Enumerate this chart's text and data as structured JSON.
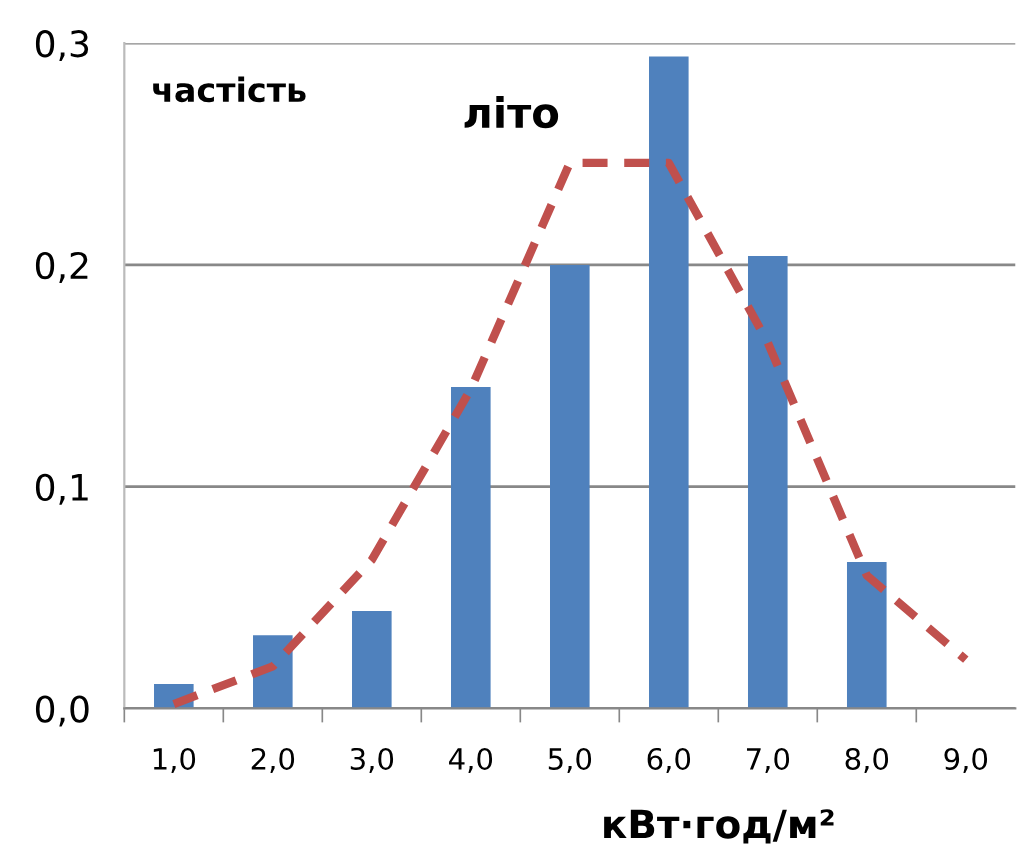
{
  "chart_data": {
    "type": "bar",
    "ylabel": "частість",
    "xlabel": "кВт·год/м²",
    "categories": [
      "1,0",
      "2,0",
      "3,0",
      "4,0",
      "5,0",
      "6,0",
      "7,0",
      "8,0",
      "9,0"
    ],
    "series": [
      {
        "color": "#4f81bd",
        "values": [
          0.011,
          0.033,
          0.044,
          0.145,
          0.2,
          0.294,
          0.204,
          0.066,
          null
        ]
      },
      {
        "type": "line",
        "name": "літо",
        "color": "#c0504d",
        "line_style": "dashed",
        "marker": "none",
        "values": [
          0.002,
          0.019,
          0.067,
          0.144,
          0.246,
          0.246,
          0.165,
          0.06,
          0.022
        ]
      }
    ],
    "ylim": [
      0,
      0.3
    ],
    "yticks": [
      {
        "value": 0,
        "label": "0,0"
      },
      {
        "value": 0.1,
        "label": "0,1"
      },
      {
        "value": 0.2,
        "label": "0,2"
      },
      {
        "value": 0.3,
        "label": "0,3"
      }
    ],
    "grid": "y",
    "legend": false
  }
}
